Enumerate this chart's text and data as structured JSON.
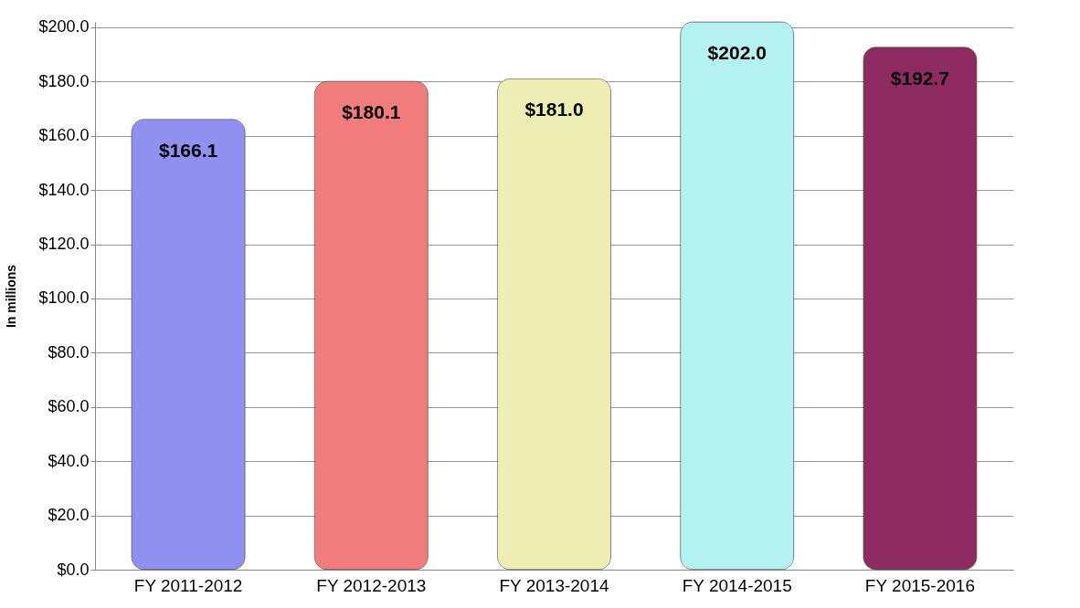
{
  "chart_data": {
    "type": "bar",
    "ylabel": "In millions",
    "categories": [
      "FY 2011-2012",
      "FY 2012-2013",
      "FY 2013-2014",
      "FY 2014-2015",
      "FY 2015-2016"
    ],
    "values": [
      166.1,
      180.1,
      181.0,
      202.0,
      192.7
    ],
    "colors": [
      "#9090f0",
      "#f07c7c",
      "#eeeeb4",
      "#b4f2f2",
      "#8e2c62"
    ],
    "value_labels": [
      "$166.1",
      "$180.1",
      "$181.0",
      "$202.0",
      "$192.7"
    ],
    "ylim": [
      0,
      202
    ],
    "yticks": [
      {
        "value": 0,
        "label": "$0.0"
      },
      {
        "value": 20,
        "label": "$20.0"
      },
      {
        "value": 40,
        "label": "$40.0"
      },
      {
        "value": 60,
        "label": "$60.0"
      },
      {
        "value": 80,
        "label": "$80.0"
      },
      {
        "value": 100,
        "label": "$100.0"
      },
      {
        "value": 120,
        "label": "$120.0"
      },
      {
        "value": 140,
        "label": "$140.0"
      },
      {
        "value": 160,
        "label": "$160.0"
      },
      {
        "value": 180,
        "label": "$180.0"
      },
      {
        "value": 200,
        "label": "$200.0"
      }
    ],
    "grid": "y"
  }
}
